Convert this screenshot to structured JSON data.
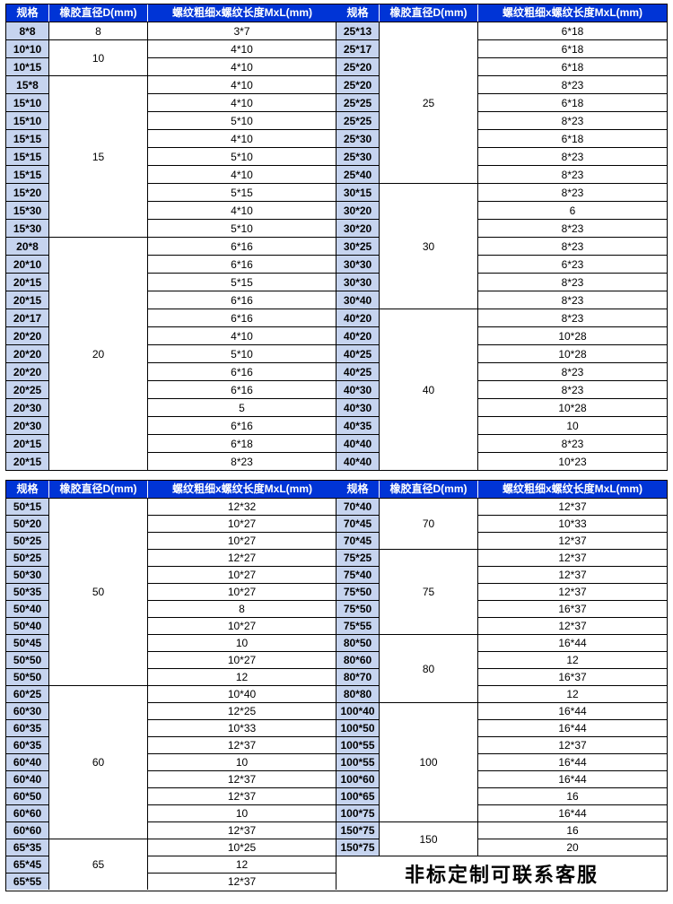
{
  "headers": {
    "spec": "规格",
    "diameter": "橡胶直径D(mm)",
    "thread": "螺纹粗细x螺纹长度MxL(mm)"
  },
  "footer_note": "非标定制可联系客服",
  "colors": {
    "header_bg": "#0034d6",
    "header_fg": "#ffffff",
    "spec_cell_bg": "#c6d4ef",
    "border": "#000000"
  },
  "table1": {
    "left": {
      "specs": [
        "8*8",
        "10*10",
        "10*15",
        "15*8",
        "15*10",
        "15*10",
        "15*15",
        "15*15",
        "15*15",
        "15*20",
        "15*30",
        "15*30",
        "20*8",
        "20*10",
        "20*15",
        "20*15",
        "20*17",
        "20*20",
        "20*20",
        "20*20",
        "20*25",
        "20*30",
        "20*30",
        "20*15",
        "20*15"
      ],
      "diameters": [
        {
          "label": "8",
          "span": 1
        },
        {
          "label": "10",
          "span": 2
        },
        {
          "label": "15",
          "span": 9
        },
        {
          "label": "20",
          "span": 13
        }
      ],
      "threads": [
        "3*7",
        "4*10",
        "4*10",
        "4*10",
        "4*10",
        "5*10",
        "4*10",
        "5*10",
        "4*10",
        "5*15",
        "4*10",
        "5*10",
        "6*16",
        "6*16",
        "5*15",
        "6*16",
        "6*16",
        "4*10",
        "5*10",
        "6*16",
        "6*16",
        "5",
        "6*16",
        "6*18",
        "8*23"
      ]
    },
    "right": {
      "specs": [
        "25*13",
        "25*17",
        "25*20",
        "25*20",
        "25*25",
        "25*25",
        "25*30",
        "25*30",
        "25*40",
        "30*15",
        "30*20",
        "30*20",
        "30*25",
        "30*30",
        "30*30",
        "30*40",
        "40*20",
        "40*20",
        "40*25",
        "40*25",
        "40*30",
        "40*30",
        "40*35",
        "40*40",
        "40*40"
      ],
      "diameters": [
        {
          "label": "25",
          "span": 9
        },
        {
          "label": "30",
          "span": 7
        },
        {
          "label": "40",
          "span": 9
        }
      ],
      "threads": [
        "6*18",
        "6*18",
        "6*18",
        "8*23",
        "6*18",
        "8*23",
        "6*18",
        "8*23",
        "8*23",
        "8*23",
        "6",
        "8*23",
        "8*23",
        "6*23",
        "8*23",
        "8*23",
        "8*23",
        "10*28",
        "10*28",
        "8*23",
        "8*23",
        "10*28",
        "10",
        "8*23",
        "10*23"
      ]
    }
  },
  "table2": {
    "left": {
      "specs": [
        "50*15",
        "50*20",
        "50*25",
        "50*25",
        "50*30",
        "50*35",
        "50*40",
        "50*40",
        "50*45",
        "50*50",
        "50*50",
        "60*25",
        "60*30",
        "60*35",
        "60*35",
        "60*40",
        "60*40",
        "60*50",
        "60*60",
        "60*60",
        "65*35",
        "65*45",
        "65*55"
      ],
      "diameters": [
        {
          "label": "50",
          "span": 11
        },
        {
          "label": "60",
          "span": 9
        },
        {
          "label": "65",
          "span": 3
        }
      ],
      "threads": [
        "12*32",
        "10*27",
        "10*27",
        "12*27",
        "10*27",
        "10*27",
        "8",
        "10*27",
        "10",
        "10*27",
        "12",
        "10*40",
        "12*25",
        "10*33",
        "12*37",
        "10",
        "12*37",
        "12*37",
        "10",
        "12*37",
        "10*25",
        "12",
        "12*37"
      ]
    },
    "right": {
      "specs": [
        "70*40",
        "70*45",
        "70*45",
        "75*25",
        "75*40",
        "75*50",
        "75*50",
        "75*55",
        "80*50",
        "80*60",
        "80*70",
        "80*80",
        "100*40",
        "100*50",
        "100*55",
        "100*55",
        "100*60",
        "100*65",
        "100*75",
        "150*75",
        "150*75"
      ],
      "diameters": [
        {
          "label": "70",
          "span": 3
        },
        {
          "label": "75",
          "span": 5
        },
        {
          "label": "80",
          "span": 4
        },
        {
          "label": "100",
          "span": 7
        },
        {
          "label": "150",
          "span": 2
        }
      ],
      "threads": [
        "12*37",
        "10*33",
        "12*37",
        "12*37",
        "12*37",
        "12*37",
        "16*37",
        "12*37",
        "16*44",
        "12",
        "16*37",
        "12",
        "16*44",
        "16*44",
        "12*37",
        "16*44",
        "16*44",
        "16",
        "16*44",
        "16",
        "20"
      ],
      "footer_span": 2
    }
  }
}
